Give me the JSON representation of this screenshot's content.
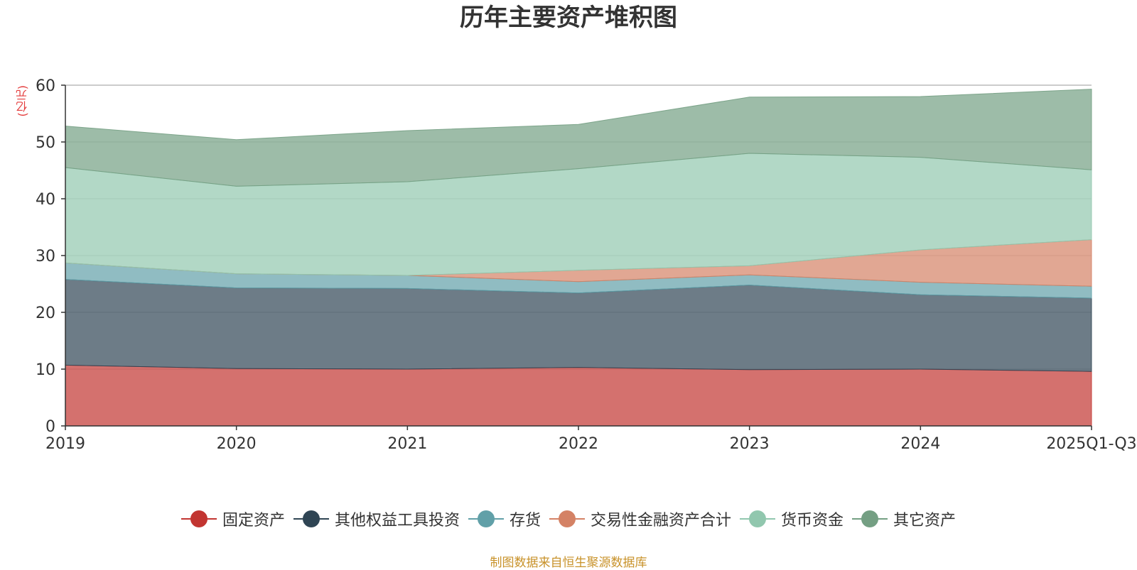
{
  "chart_data": {
    "type": "area",
    "stacked": true,
    "title": "历年主要资产堆积图",
    "unit_label": "(亿元)",
    "categories": [
      "2019",
      "2020",
      "2021",
      "2022",
      "2023",
      "2024",
      "2025Q1-Q3"
    ],
    "ylim": [
      0,
      60
    ],
    "yticks": [
      0,
      10,
      20,
      30,
      40,
      50,
      60
    ],
    "legend_position": "bottom",
    "series": [
      {
        "name": "固定资产",
        "color": "#c23531",
        "values": [
          10.7,
          10.1,
          10.0,
          10.3,
          9.9,
          10.0,
          9.6
        ]
      },
      {
        "name": "其他权益工具投资",
        "color": "#2f4554",
        "values": [
          15.1,
          14.2,
          14.2,
          13.1,
          14.9,
          13.1,
          12.9
        ]
      },
      {
        "name": "存货",
        "color": "#61a0a8",
        "values": [
          2.9,
          2.5,
          2.3,
          2.0,
          1.8,
          2.2,
          2.1
        ]
      },
      {
        "name": "交易性金融资产合计",
        "color": "#d48265",
        "values": [
          0.0,
          0.0,
          0.0,
          2.0,
          1.6,
          5.7,
          8.2
        ]
      },
      {
        "name": "货币资金",
        "color": "#91c7ae",
        "values": [
          16.8,
          15.4,
          16.5,
          17.9,
          19.8,
          16.3,
          12.3
        ]
      },
      {
        "name": "其它资产",
        "color": "#749f83",
        "values": [
          7.3,
          8.2,
          9.0,
          7.8,
          9.9,
          10.7,
          14.2
        ]
      }
    ],
    "source": "制图数据来自恒生聚源数据库"
  }
}
